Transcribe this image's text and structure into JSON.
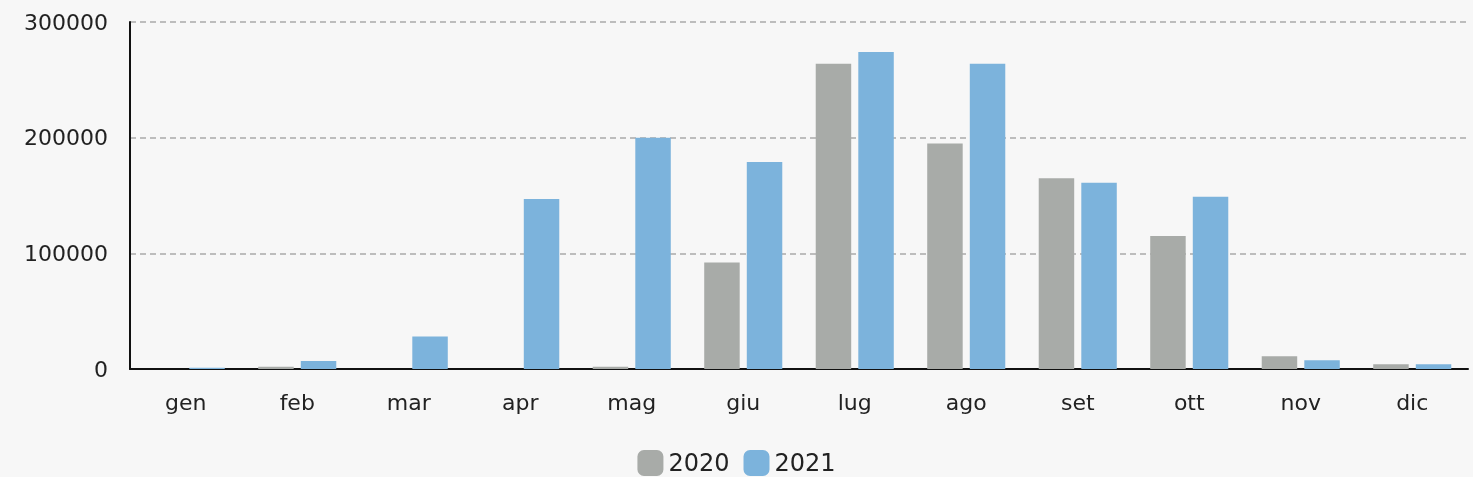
{
  "chart_data": {
    "type": "bar",
    "categories": [
      "gen",
      "feb",
      "mar",
      "apr",
      "mag",
      "giu",
      "lug",
      "ago",
      "set",
      "ott",
      "nov",
      "dic"
    ],
    "series": [
      {
        "name": "2020",
        "color": "#a8aba8",
        "values": [
          null,
          2000,
          null,
          null,
          2000,
          92000,
          264000,
          195000,
          165000,
          115000,
          11000,
          4000
        ]
      },
      {
        "name": "2021",
        "color": "#7cb3dc",
        "values": [
          1000,
          7000,
          28000,
          147000,
          200000,
          179000,
          274000,
          264000,
          161000,
          149000,
          7500,
          4000
        ]
      }
    ],
    "ylim": [
      0,
      300000
    ],
    "yticks": [
      0,
      100000,
      200000,
      300000
    ],
    "grid": "y",
    "legend": "bottom"
  }
}
